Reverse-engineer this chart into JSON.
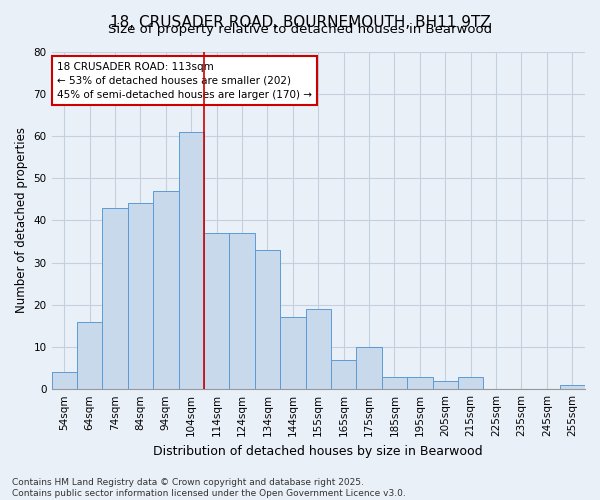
{
  "title_line1": "18, CRUSADER ROAD, BOURNEMOUTH, BH11 9TZ",
  "title_line2": "Size of property relative to detached houses in Bearwood",
  "xlabel": "Distribution of detached houses by size in Bearwood",
  "ylabel": "Number of detached properties",
  "categories": [
    "54sqm",
    "64sqm",
    "74sqm",
    "84sqm",
    "94sqm",
    "104sqm",
    "114sqm",
    "124sqm",
    "134sqm",
    "144sqm",
    "155sqm",
    "165sqm",
    "175sqm",
    "185sqm",
    "195sqm",
    "205sqm",
    "215sqm",
    "225sqm",
    "235sqm",
    "245sqm",
    "255sqm"
  ],
  "values": [
    4,
    16,
    43,
    44,
    47,
    61,
    37,
    37,
    33,
    17,
    19,
    7,
    10,
    3,
    3,
    2,
    3,
    0,
    0,
    0,
    1
  ],
  "bar_color": "#c8d9ec",
  "bar_edge_color": "#5b9bd5",
  "grid_color": "#c5d0df",
  "background_color": "#eaf0f8",
  "vline_x": 6.0,
  "vline_color": "#cc0000",
  "annotation_line1": "18 CRUSADER ROAD: 113sqm",
  "annotation_line2": "← 53% of detached houses are smaller (202)",
  "annotation_line3": "45% of semi-detached houses are larger (170) →",
  "annotation_box_color": "#ffffff",
  "annotation_edge_color": "#cc0000",
  "ylim": [
    0,
    80
  ],
  "yticks": [
    0,
    10,
    20,
    30,
    40,
    50,
    60,
    70,
    80
  ],
  "footnote": "Contains HM Land Registry data © Crown copyright and database right 2025.\nContains public sector information licensed under the Open Government Licence v3.0.",
  "title_fontsize": 11,
  "subtitle_fontsize": 9.5,
  "xlabel_fontsize": 9,
  "ylabel_fontsize": 8.5,
  "tick_fontsize": 7.5,
  "annotation_fontsize": 7.5,
  "footnote_fontsize": 6.5
}
